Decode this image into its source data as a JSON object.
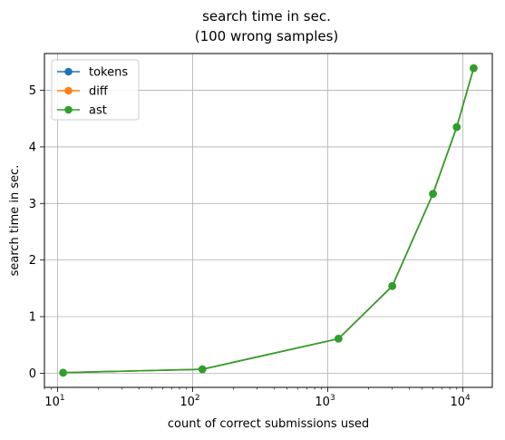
{
  "chart_data": {
    "type": "line",
    "title": "search time in sec.\n(100 wrong samples)",
    "title_lines": [
      "search time in sec.",
      "(100 wrong samples)"
    ],
    "xlabel": "count of correct submissions used",
    "ylabel": "search time in sec.",
    "xscale": "log",
    "xlim": [
      8.0,
      16500
    ],
    "ylim": [
      -0.25,
      5.65
    ],
    "x_ticks": [
      {
        "value": 10,
        "base": "10",
        "exp": "1"
      },
      {
        "value": 100,
        "base": "10",
        "exp": "2"
      },
      {
        "value": 1000,
        "base": "10",
        "exp": "3"
      },
      {
        "value": 10000,
        "base": "10",
        "exp": "4"
      }
    ],
    "y_ticks": [
      0,
      1,
      2,
      3,
      4,
      5
    ],
    "grid": true,
    "legend_position": "top-left",
    "x": [
      11,
      118,
      1200,
      3000,
      6000,
      9000,
      12000
    ],
    "series": [
      {
        "name": "tokens",
        "color": "#1f77b4",
        "values": [
          0.01,
          0.07,
          0.61,
          1.54,
          3.17,
          4.35,
          5.39
        ]
      },
      {
        "name": "diff",
        "color": "#ff7f0e",
        "values": [
          0.01,
          0.07,
          0.61,
          1.54,
          3.17,
          4.35,
          5.39
        ]
      },
      {
        "name": "ast",
        "color": "#2ca02c",
        "values": [
          0.01,
          0.07,
          0.61,
          1.54,
          3.17,
          4.35,
          5.39
        ]
      }
    ]
  }
}
